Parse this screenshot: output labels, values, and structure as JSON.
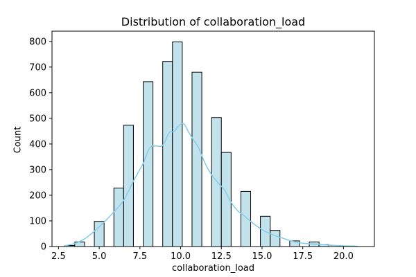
{
  "chart_data": {
    "type": "bar",
    "title": "Distribution of collaboration_load",
    "xlabel": "collaboration_load",
    "ylabel": "Count",
    "xlim": [
      2.1,
      21.9
    ],
    "ylim": [
      0,
      840
    ],
    "xticks": [
      2.5,
      5.0,
      7.5,
      10.0,
      12.5,
      15.0,
      17.5,
      20.0
    ],
    "xtick_labels": [
      "2.5",
      "5.0",
      "7.5",
      "10.0",
      "12.5",
      "15.0",
      "17.5",
      "20.0"
    ],
    "yticks": [
      0,
      100,
      200,
      300,
      400,
      500,
      600,
      700,
      800
    ],
    "ytick_labels": [
      "0",
      "100",
      "200",
      "300",
      "400",
      "500",
      "600",
      "700",
      "800"
    ],
    "grid": false,
    "bin_width": 0.6,
    "bin_edges": [
      2.9,
      3.5,
      4.1,
      4.7,
      5.3,
      5.9,
      6.5,
      7.1,
      7.7,
      8.3,
      8.9,
      9.5,
      10.1,
      10.7,
      11.3,
      11.9,
      12.5,
      13.1,
      13.7,
      14.3,
      14.9,
      15.5,
      16.1,
      16.7,
      17.3,
      17.9,
      18.5,
      19.1,
      19.7,
      20.3,
      20.9
    ],
    "counts": [
      4,
      18,
      0,
      98,
      0,
      228,
      473,
      0,
      643,
      0,
      722,
      798,
      0,
      680,
      0,
      503,
      367,
      0,
      215,
      0,
      118,
      63,
      0,
      22,
      0,
      18,
      8,
      0,
      2,
      0
    ],
    "kde": {
      "x": [
        2.9,
        3.5,
        4.1,
        4.7,
        5.3,
        5.9,
        6.5,
        7.1,
        7.7,
        8.1,
        8.5,
        8.9,
        9.3,
        9.6,
        9.9,
        10.2,
        10.5,
        10.8,
        11.1,
        11.5,
        11.9,
        12.3,
        12.7,
        13.1,
        13.5,
        13.9,
        14.5,
        15.1,
        15.7,
        16.3,
        16.9,
        17.5,
        18.1,
        18.7,
        19.3,
        19.9,
        20.5,
        20.9
      ],
      "y": [
        3,
        12,
        30,
        60,
        95,
        135,
        180,
        255,
        325,
        385,
        392,
        395,
        445,
        448,
        472,
        478,
        445,
        415,
        385,
        325,
        280,
        248,
        220,
        172,
        140,
        120,
        88,
        62,
        45,
        32,
        20,
        13,
        10,
        8,
        5,
        3,
        2,
        1
      ]
    },
    "colors": {
      "bar_fill": "#add8e6",
      "bar_edge": "#000000",
      "kde_line": "#87ceeb"
    }
  }
}
